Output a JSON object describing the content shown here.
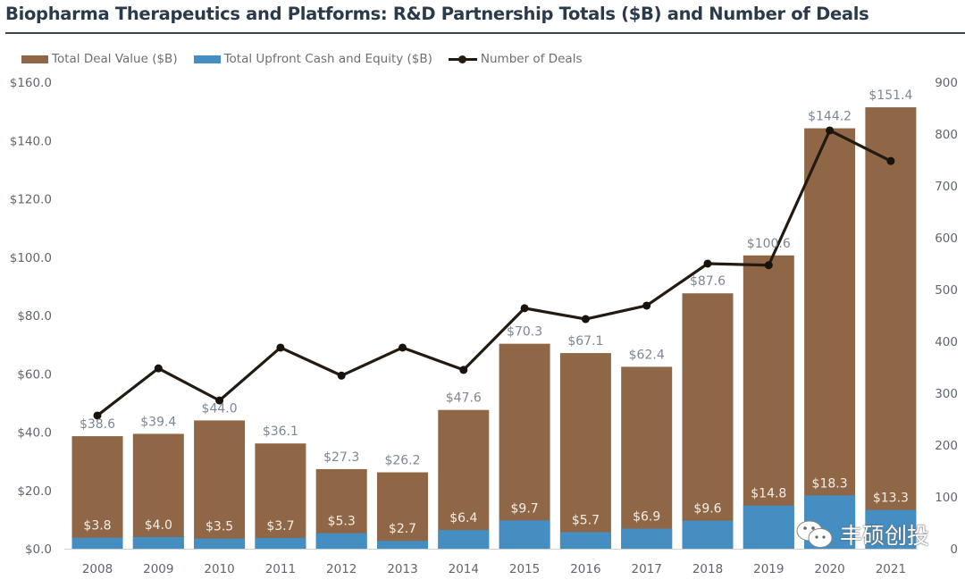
{
  "header": {
    "title": "Biopharma Therapeutics and Platforms: R&D Partnership Totals ($B) and Number of Deals"
  },
  "legend": {
    "items": [
      {
        "label": "Total Deal Value ($B)",
        "color": "#8f6746",
        "kind": "bar"
      },
      {
        "label": "Total Upfront Cash and Equity ($B)",
        "color": "#458ec1",
        "kind": "bar"
      },
      {
        "label": "Number of Deals",
        "color": "#231a12",
        "kind": "line"
      }
    ]
  },
  "watermark": {
    "icon": "wechat-icon",
    "text": "丰硕创投"
  },
  "chart_data": {
    "type": "bar",
    "title": "Biopharma Therapeutics and Platforms: R&D Partnership Totals ($B) and Number of Deals",
    "xlabel": "",
    "ylabel": "",
    "y2label": "",
    "categories": [
      "2008",
      "2009",
      "2010",
      "2011",
      "2012",
      "2013",
      "2014",
      "2015",
      "2016",
      "2017",
      "2018",
      "2019",
      "2020",
      "2021"
    ],
    "series": [
      {
        "name": "Total Deal Value ($B)",
        "type": "bar",
        "axis": "left",
        "color": "#8f6746",
        "values": [
          38.6,
          39.4,
          44.0,
          36.1,
          27.3,
          26.2,
          47.6,
          70.3,
          67.1,
          62.4,
          87.6,
          100.6,
          144.2,
          151.4
        ],
        "labels": [
          "$38.6",
          "$39.4",
          "$44.0",
          "$36.1",
          "$27.3",
          "$26.2",
          "$47.6",
          "$70.3",
          "$67.1",
          "$62.4",
          "$87.6",
          "$100.6",
          "$144.2",
          "$151.4"
        ]
      },
      {
        "name": "Total Upfront Cash and Equity ($B)",
        "type": "bar",
        "axis": "left",
        "color": "#458ec1",
        "values": [
          3.8,
          4.0,
          3.5,
          3.7,
          5.3,
          2.7,
          6.4,
          9.7,
          5.7,
          6.9,
          9.6,
          14.8,
          18.3,
          13.3
        ],
        "labels": [
          "$3.8",
          "$4.0",
          "$3.5",
          "$3.7",
          "$5.3",
          "$2.7",
          "$6.4",
          "$9.7",
          "$5.7",
          "$6.9",
          "$9.6",
          "$14.8",
          "$18.3",
          "$13.3"
        ]
      },
      {
        "name": "Number of Deals",
        "type": "line",
        "axis": "right",
        "color": "#231a12",
        "values": [
          257,
          348,
          286,
          388,
          334,
          388,
          345,
          464,
          443,
          469,
          550,
          547,
          807,
          748
        ]
      }
    ],
    "ylim": [
      0,
      160
    ],
    "y2lim": [
      0,
      900
    ],
    "yticks": [
      "$0.0",
      "$20.0",
      "$40.0",
      "$60.0",
      "$80.0",
      "$100.0",
      "$120.0",
      "$140.0",
      "$160.0"
    ],
    "ytick_values": [
      0,
      20,
      40,
      60,
      80,
      100,
      120,
      140,
      160
    ],
    "y2ticks": [
      "0",
      "100",
      "200",
      "300",
      "400",
      "500",
      "600",
      "700",
      "800",
      "900"
    ],
    "y2tick_values": [
      0,
      100,
      200,
      300,
      400,
      500,
      600,
      700,
      800,
      900
    ],
    "grid": false,
    "legend_position": "top-left"
  }
}
